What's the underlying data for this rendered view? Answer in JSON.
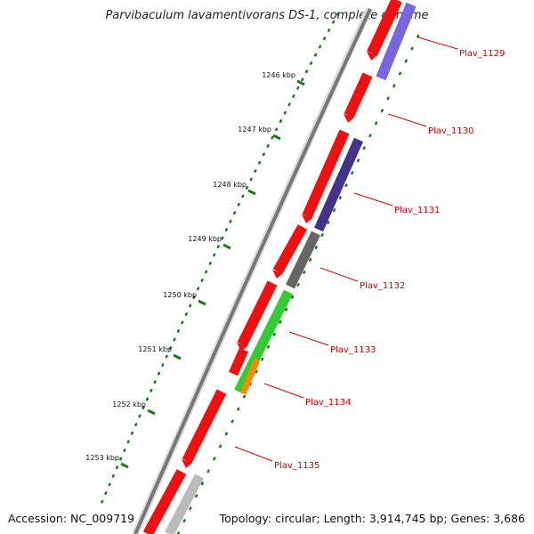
{
  "title": "Parvibaculum lavamentivorans DS-1, complete genome",
  "footer": {
    "accession": "Accession: NC_009719",
    "summary": "Topology: circular; Length: 3,914,745 bp; Genes: 3,686"
  },
  "colors": {
    "forward_gene": "#ee1111",
    "label_text": "#cc0000",
    "tick": "#1a7a1a",
    "backbone": "#888888",
    "navy": "#443388",
    "lavender": "#7766dd",
    "gray": "#666666",
    "green": "#33cc33",
    "orange": "#ff8800",
    "light_gray": "#bbbbbb"
  },
  "ticks": [
    "1246 kbp",
    "1247 kbp",
    "1248 kbp",
    "1249 kbp",
    "1250 kbp",
    "1251 kbp",
    "1252 kbp",
    "1253 kbp"
  ],
  "genes": [
    "Plav_1129",
    "Plav_1130",
    "Plav_1131",
    "Plav_1132",
    "Plav_1133",
    "Plav_1134",
    "Plav_1135"
  ]
}
